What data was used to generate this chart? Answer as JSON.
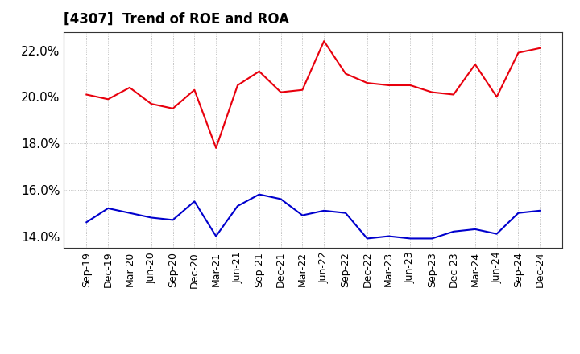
{
  "title": "[4307]  Trend of ROE and ROA",
  "x_labels": [
    "Sep-19",
    "Dec-19",
    "Mar-20",
    "Jun-20",
    "Sep-20",
    "Dec-20",
    "Mar-21",
    "Jun-21",
    "Sep-21",
    "Dec-21",
    "Mar-22",
    "Jun-22",
    "Sep-22",
    "Dec-22",
    "Mar-23",
    "Jun-23",
    "Sep-23",
    "Dec-23",
    "Mar-24",
    "Jun-24",
    "Sep-24",
    "Dec-24"
  ],
  "roe": [
    20.1,
    19.9,
    20.4,
    19.7,
    19.5,
    20.3,
    17.8,
    20.5,
    21.1,
    20.2,
    20.3,
    22.4,
    21.0,
    20.6,
    20.5,
    20.5,
    20.2,
    20.1,
    21.4,
    20.0,
    21.9,
    22.1
  ],
  "roa": [
    14.6,
    15.2,
    15.0,
    14.8,
    14.7,
    15.5,
    14.0,
    15.3,
    15.8,
    15.6,
    14.9,
    15.1,
    15.0,
    13.9,
    14.0,
    13.9,
    13.9,
    14.2,
    14.3,
    14.1,
    15.0,
    15.1
  ],
  "roe_color": "#e8000d",
  "roa_color": "#0000cd",
  "ylim_min": 13.5,
  "ylim_max": 22.8,
  "yticks": [
    14.0,
    16.0,
    18.0,
    20.0,
    22.0
  ],
  "background_color": "#ffffff",
  "grid_color": "#999999",
  "title_fontsize": 12,
  "axis_fontsize": 9,
  "ylabel_fontsize": 11,
  "legend_fontsize": 10
}
